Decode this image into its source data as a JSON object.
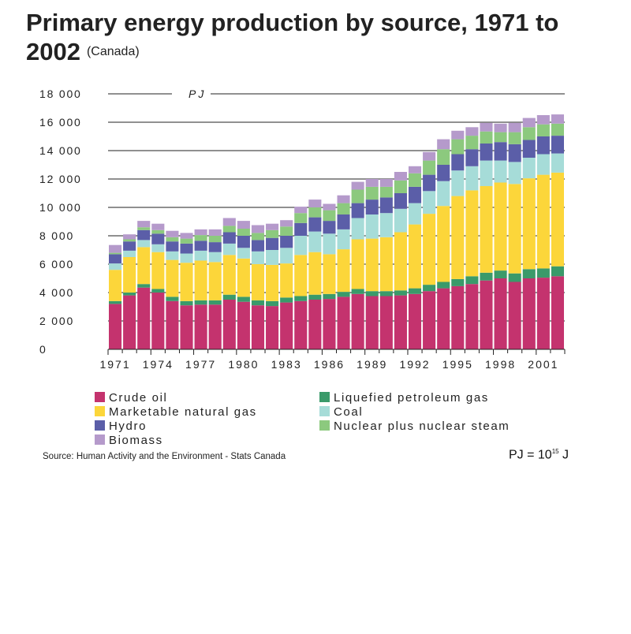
{
  "title": "Primary energy production by source, 1971 to 2002",
  "subtitle": "(Canada)",
  "unit_label": "PJ",
  "source": "Source: Human Activity and the Environment - Stats Canada",
  "units_note": {
    "base": "PJ = 10",
    "exp": "15",
    "suffix": " J"
  },
  "chart_data": {
    "type": "bar",
    "stacked": true,
    "ylabel": "PJ",
    "ylim": [
      0,
      18000
    ],
    "yticks": [
      "0",
      "2 000",
      "4 000",
      "6 000",
      "8 000",
      "10 000",
      "12 000",
      "14 000",
      "16 000",
      "18 000"
    ],
    "grid": true,
    "categories": [
      "1971",
      "1972",
      "1973",
      "1974",
      "1975",
      "1976",
      "1977",
      "1978",
      "1979",
      "1980",
      "1981",
      "1982",
      "1983",
      "1984",
      "1985",
      "1986",
      "1987",
      "1988",
      "1989",
      "1990",
      "1991",
      "1992",
      "1993",
      "1994",
      "1995",
      "1996",
      "1997",
      "1998",
      "1999",
      "2000",
      "2001",
      "2002"
    ],
    "xticklabels": [
      "1971",
      "1974",
      "1977",
      "1980",
      "1983",
      "1986",
      "1989",
      "1992",
      "1995",
      "1998",
      "2001"
    ],
    "legend_position": "bottom",
    "series": [
      {
        "name": "Crude oil",
        "color": "#c4336e",
        "values": [
          3200,
          3800,
          4350,
          4000,
          3400,
          3100,
          3150,
          3150,
          3500,
          3350,
          3100,
          3050,
          3300,
          3400,
          3500,
          3550,
          3700,
          3900,
          3750,
          3750,
          3800,
          3900,
          4100,
          4300,
          4450,
          4600,
          4850,
          5000,
          4750,
          5000,
          5050,
          5150
        ]
      },
      {
        "name": "Liquefied petroleum gas",
        "color": "#3a9a6a",
        "values": [
          200,
          200,
          250,
          250,
          300,
          300,
          300,
          300,
          350,
          350,
          350,
          350,
          350,
          350,
          350,
          350,
          350,
          350,
          350,
          350,
          350,
          400,
          450,
          450,
          500,
          550,
          550,
          550,
          600,
          650,
          650,
          700
        ]
      },
      {
        "name": "Marketable natural gas",
        "color": "#fcd63a",
        "values": [
          2200,
          2500,
          2600,
          2600,
          2600,
          2700,
          2800,
          2700,
          2800,
          2700,
          2550,
          2550,
          2400,
          2900,
          3000,
          2800,
          3000,
          3500,
          3700,
          3800,
          4100,
          4500,
          5000,
          5350,
          5850,
          6050,
          6100,
          6200,
          6300,
          6400,
          6600,
          6600
        ]
      },
      {
        "name": "Coal",
        "color": "#a6dcd8",
        "values": [
          450,
          450,
          500,
          550,
          600,
          650,
          700,
          700,
          800,
          750,
          900,
          1050,
          1100,
          1350,
          1450,
          1450,
          1400,
          1500,
          1700,
          1700,
          1650,
          1500,
          1600,
          1750,
          1800,
          1700,
          1800,
          1550,
          1550,
          1450,
          1450,
          1350
        ]
      },
      {
        "name": "Hydro",
        "color": "#5b5ea8",
        "values": [
          650,
          650,
          700,
          750,
          700,
          700,
          700,
          700,
          800,
          850,
          800,
          850,
          850,
          900,
          1000,
          900,
          1050,
          1050,
          1050,
          1100,
          1100,
          1150,
          1150,
          1150,
          1150,
          1200,
          1200,
          1300,
          1250,
          1250,
          1250,
          1250
        ]
      },
      {
        "name": "Nuclear plus nuclear steam",
        "color": "#8cc97e",
        "values": [
          100,
          150,
          200,
          250,
          300,
          350,
          400,
          450,
          450,
          500,
          500,
          550,
          650,
          700,
          700,
          750,
          800,
          950,
          900,
          750,
          900,
          950,
          1000,
          1100,
          1050,
          950,
          850,
          700,
          850,
          900,
          850,
          850
        ]
      },
      {
        "name": "Biomass",
        "color": "#b59acb",
        "values": [
          550,
          350,
          450,
          450,
          450,
          400,
          400,
          450,
          550,
          550,
          550,
          450,
          450,
          450,
          550,
          450,
          550,
          550,
          550,
          550,
          600,
          500,
          600,
          700,
          600,
          600,
          600,
          600,
          650,
          650,
          650,
          650
        ]
      }
    ]
  }
}
